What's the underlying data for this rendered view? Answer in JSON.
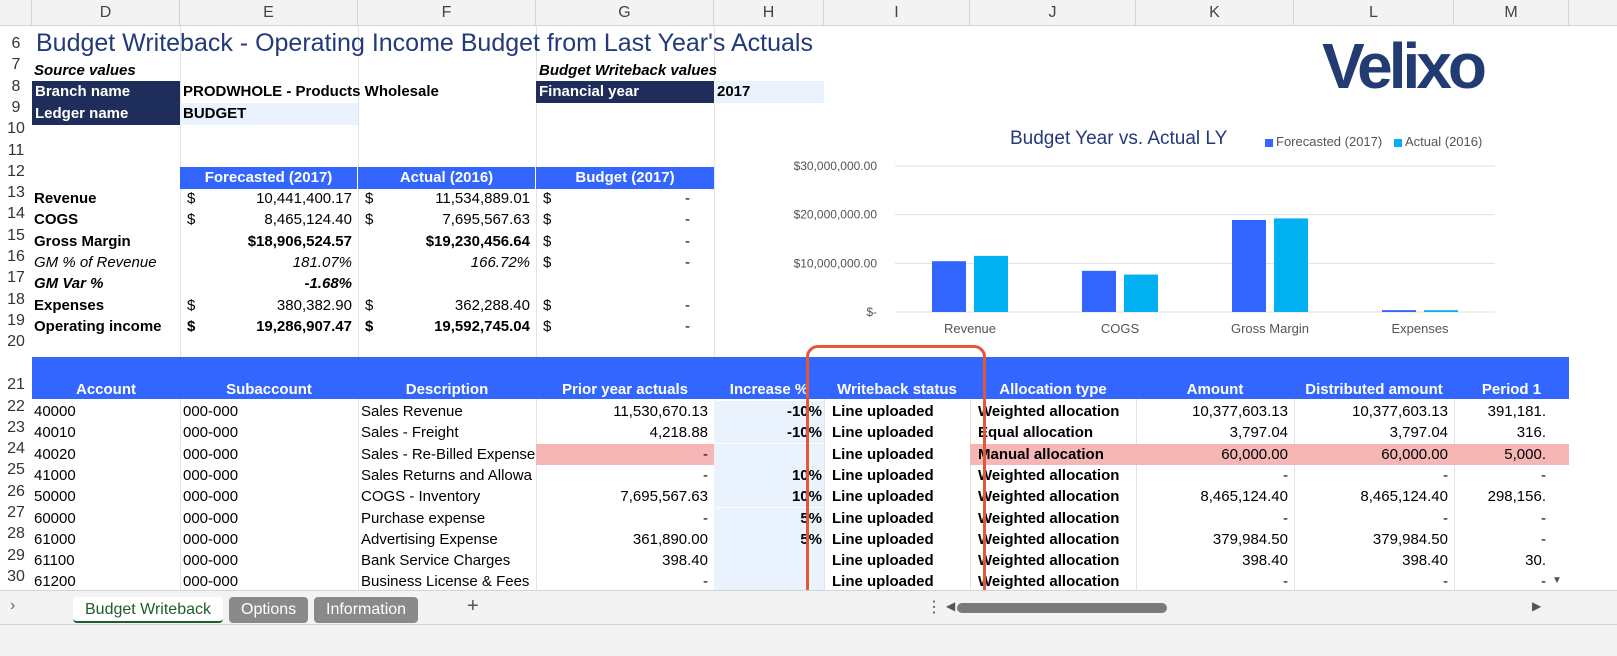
{
  "columns": [
    "D",
    "E",
    "F",
    "G",
    "H",
    "I",
    "J",
    "K",
    "L",
    "M"
  ],
  "rows": [
    "6",
    "7",
    "8",
    "9",
    "10",
    "11",
    "12",
    "13",
    "14",
    "15",
    "16",
    "17",
    "18",
    "19",
    "20",
    "21",
    "22",
    "23",
    "24",
    "25",
    "26",
    "27",
    "28",
    "29",
    "30"
  ],
  "title": "Budget Writeback - Operating Income Budget from Last Year's Actuals",
  "logo": "Velixo",
  "source_values_label": "Source values",
  "writeback_values_label": "Budget Writeback values",
  "branch_name_label": "Branch name",
  "branch_name_value": "PRODWHOLE - Products Wholesale",
  "ledger_name_label": "Ledger name",
  "ledger_name_value": "BUDGET",
  "financial_year_label": "Financial year",
  "financial_year_value": "2017",
  "summary": {
    "headers": [
      "Forecasted (2017)",
      "Actual (2016)",
      "Budget (2017)"
    ],
    "rows": [
      {
        "label": "Revenue",
        "style": "b",
        "cur1": "$",
        "v1": "10,441,400.17",
        "cur2": "$",
        "v2": "11,534,889.01",
        "cur3": "$",
        "v3": "-"
      },
      {
        "label": "COGS",
        "style": "b",
        "cur1": "$",
        "v1": "8,465,124.40",
        "cur2": "$",
        "v2": "7,695,567.63",
        "cur3": "$",
        "v3": "-"
      },
      {
        "label": "Gross Margin",
        "style": "b",
        "cur1": "",
        "v1": "$18,906,524.57",
        "cur2": "",
        "v2": "$19,230,456.64",
        "cur3": "$",
        "v3": "-"
      },
      {
        "label": "GM % of Revenue",
        "style": "i",
        "cur1": "",
        "v1": "181.07%",
        "cur2": "",
        "v2": "166.72%",
        "cur3": "$",
        "v3": "-"
      },
      {
        "label": "GM Var %",
        "style": "bi",
        "cur1": "",
        "v1": "-1.68%",
        "cur2": "",
        "v2": "",
        "cur3": "",
        "v3": ""
      },
      {
        "label": "Expenses",
        "style": "b",
        "cur1": "$",
        "v1": "380,382.90",
        "cur2": "$",
        "v2": "362,288.40",
        "cur3": "$",
        "v3": "-"
      },
      {
        "label": "Operating income",
        "style": "b",
        "cur1": "$",
        "v1": "19,286,907.47",
        "cur2": "$",
        "v2": "19,592,745.04",
        "cur3": "$",
        "v3": "-"
      }
    ]
  },
  "chart_data": {
    "type": "bar",
    "title": "Budget Year vs. Actual LY",
    "categories": [
      "Revenue",
      "COGS",
      "Gross Margin",
      "Expenses"
    ],
    "series": [
      {
        "name": "Forecasted (2017)",
        "color": "#3366ff",
        "values": [
          10441400.17,
          8465124.4,
          18906524.57,
          380382.9
        ]
      },
      {
        "name": "Actual (2016)",
        "color": "#00b0f0",
        "values": [
          11534889.01,
          7695567.63,
          19230456.64,
          362288.4
        ]
      }
    ],
    "ylim": [
      0,
      30000000
    ],
    "yticks": [
      0,
      10000000,
      20000000,
      30000000
    ],
    "ytick_labels": [
      "$-",
      "$10,000,000.00",
      "$20,000,000.00",
      "$30,000,000.00"
    ],
    "legend": "top-right",
    "grid": true
  },
  "table": {
    "headers": [
      "Account",
      "Subaccount",
      "Description",
      "Prior year actuals",
      "Increase %",
      "Writeback status",
      "Allocation type",
      "Amount",
      "Distributed amount",
      "Period 1"
    ],
    "rows": [
      {
        "account": "40000",
        "sub": "000-000",
        "desc": "Sales Revenue",
        "prior": "11,530,670.13",
        "inc": "-10%",
        "status": "Line uploaded",
        "alloc": "Weighted allocation",
        "amount": "10,377,603.13",
        "dist": "10,377,603.13",
        "p1": "391,181.",
        "pink": false
      },
      {
        "account": "40010",
        "sub": "000-000",
        "desc": "Sales - Freight",
        "prior": "4,218.88",
        "inc": "-10%",
        "status": "Line uploaded",
        "alloc": "Equal allocation",
        "amount": "3,797.04",
        "dist": "3,797.04",
        "p1": "316.",
        "pink": false
      },
      {
        "account": "40020",
        "sub": "000-000",
        "desc": "Sales - Re-Billed Expense",
        "prior": "-",
        "inc": "",
        "status": "Line uploaded",
        "alloc": "Manual allocation",
        "amount": "60,000.00",
        "dist": "60,000.00",
        "p1": "5,000.",
        "pink": true
      },
      {
        "account": "41000",
        "sub": "000-000",
        "desc": "Sales Returns and Allowa",
        "prior": "-",
        "inc": "10%",
        "status": "Line uploaded",
        "alloc": "Weighted allocation",
        "amount": "-",
        "dist": "-",
        "p1": "-",
        "pink": false
      },
      {
        "account": "50000",
        "sub": "000-000",
        "desc": "COGS - Inventory",
        "prior": "7,695,567.63",
        "inc": "10%",
        "status": "Line uploaded",
        "alloc": "Weighted allocation",
        "amount": "8,465,124.40",
        "dist": "8,465,124.40",
        "p1": "298,156.",
        "pink": false
      },
      {
        "account": "60000",
        "sub": "000-000",
        "desc": "Purchase expense",
        "prior": "-",
        "inc": "5%",
        "status": "Line uploaded",
        "alloc": "Weighted allocation",
        "amount": "-",
        "dist": "-",
        "p1": "-",
        "pink": false
      },
      {
        "account": "61000",
        "sub": "000-000",
        "desc": "Advertising Expense",
        "prior": "361,890.00",
        "inc": "5%",
        "status": "Line uploaded",
        "alloc": "Weighted allocation",
        "amount": "379,984.50",
        "dist": "379,984.50",
        "p1": "-",
        "pink": false
      },
      {
        "account": "61100",
        "sub": "000-000",
        "desc": "Bank Service Charges",
        "prior": "398.40",
        "inc": "",
        "status": "Line uploaded",
        "alloc": "Weighted allocation",
        "amount": "398.40",
        "dist": "398.40",
        "p1": "30.",
        "pink": false
      },
      {
        "account": "61200",
        "sub": "000-000",
        "desc": "Business License & Fees",
        "prior": "-",
        "inc": "",
        "status": "Line uploaded",
        "alloc": "Weighted allocation",
        "amount": "-",
        "dist": "-",
        "p1": "-",
        "pink": false
      }
    ]
  },
  "sheet_tabs": [
    "Budget Writeback",
    "Options",
    "Information"
  ],
  "add_sheet": "+",
  "colors": {
    "navy": "#1f2d5a",
    "header_blue": "#3366ff",
    "series2": "#00b0f0",
    "highlight": "#e0583a",
    "pink": "#f7b6b6"
  }
}
